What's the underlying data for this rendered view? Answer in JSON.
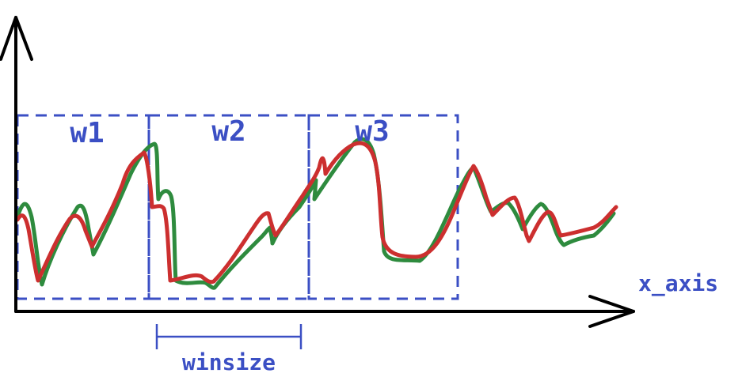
{
  "labels": {
    "windows": [
      "w1",
      "w2",
      "w3"
    ],
    "x_axis": "x_axis",
    "window_size": "winsize"
  },
  "colors": {
    "axis": "#000000",
    "annotation": "#3b4fc4",
    "series_green": "#2e8b3e",
    "series_red": "#cc2f2f",
    "background": "#ffffff"
  },
  "series": [
    {
      "name": "green",
      "color_key": "series_green"
    },
    {
      "name": "red",
      "color_key": "series_red"
    }
  ]
}
